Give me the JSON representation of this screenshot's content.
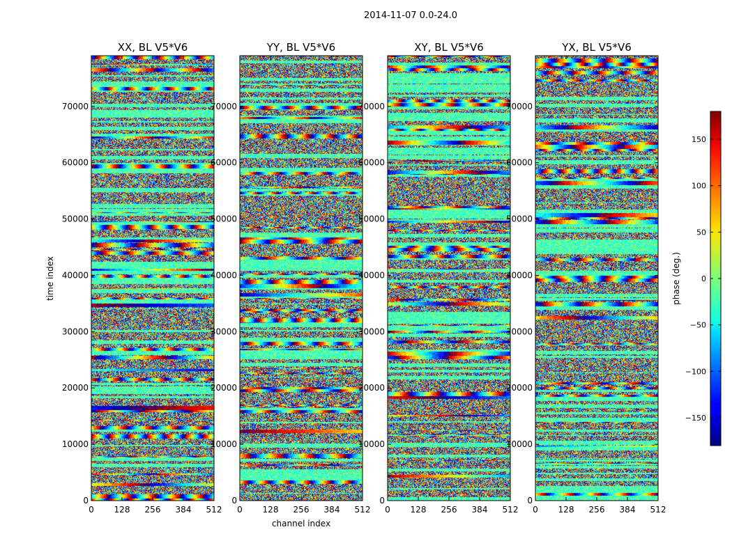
{
  "figure_title": "2014-11-07 0.0-24.0",
  "chart_data": {
    "type": "heatmap",
    "x_axis": {
      "label": "channel index",
      "range": [
        0,
        512
      ],
      "ticks": [
        0,
        128,
        256,
        384,
        512
      ]
    },
    "y_axis": {
      "label": "time index",
      "range": [
        0,
        79000
      ],
      "ticks": [
        0,
        10000,
        20000,
        30000,
        40000,
        50000,
        60000,
        70000
      ]
    },
    "panels": [
      {
        "title": "XX, BL V5*V6",
        "polarization": "XX"
      },
      {
        "title": "YY, BL V5*V6",
        "polarization": "YY"
      },
      {
        "title": "XY, BL V5*V6",
        "polarization": "XY"
      },
      {
        "title": "YX, BL V5*V6",
        "polarization": "YX"
      }
    ],
    "colorbar": {
      "label": "phase (deg.)",
      "range": [
        -180,
        180
      ],
      "ticks": [
        150,
        100,
        50,
        0,
        -50,
        -100,
        -150
      ],
      "tick_labels": [
        "150",
        "100",
        "50",
        "0",
        "−50",
        "−100",
        "−150"
      ],
      "colormap": "jet"
    },
    "grid": false
  }
}
